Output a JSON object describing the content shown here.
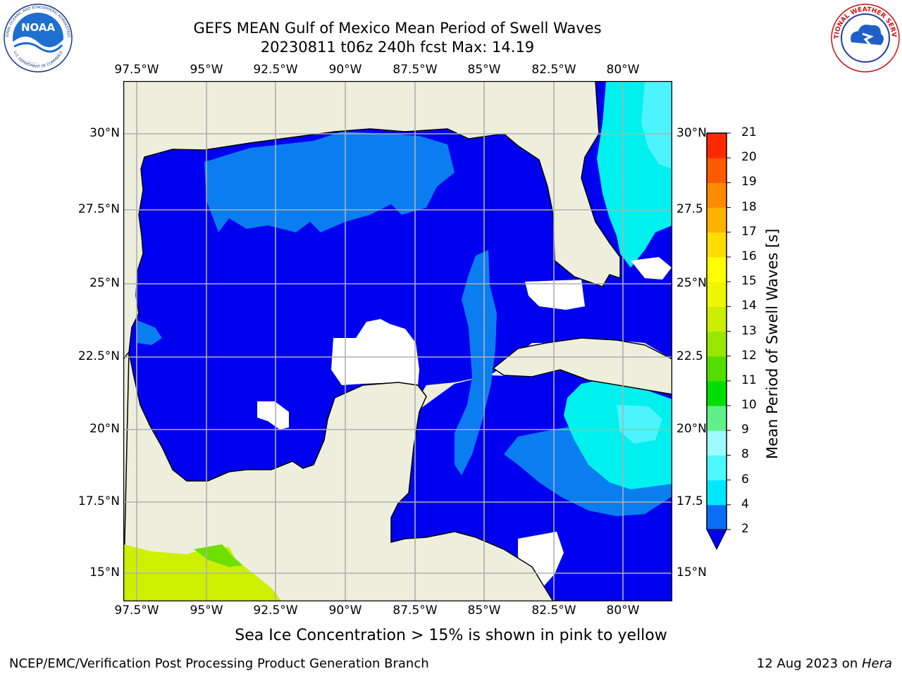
{
  "header": {
    "title_line1": "GEFS MEAN Gulf of Mexico Mean Period of Swell Waves",
    "title_line2": "20230811 t06z 240h fcst   Max: 14.19"
  },
  "map": {
    "lon_labels": [
      "97.5°W",
      "95°W",
      "92.5°W",
      "90°W",
      "87.5°W",
      "85°W",
      "82.5°W",
      "80°W"
    ],
    "lat_labels_left": [
      "30°N",
      "27.5°N",
      "25°N",
      "22.5°N",
      "20°N",
      "17.5°N",
      "15°N"
    ],
    "lat_labels_right": [
      "30°N",
      "27.5",
      "25°N",
      "22.5",
      "20°N",
      "17.5",
      "15°N"
    ],
    "colors": {
      "land": "#eeeedd",
      "water_low": "#0000f0",
      "water_mid": "#0a7ef0",
      "water_cyan": "#00f0f0",
      "water_lightcyan": "#4df3ff",
      "undefined": "#ffffff",
      "grid": "#b0b0b0"
    }
  },
  "colorbar": {
    "title": "Mean Period of Swell Waves [s]",
    "ticks": [
      "2",
      "4",
      "6",
      "8",
      "9",
      "10",
      "11",
      "12",
      "13",
      "14",
      "15",
      "16",
      "17",
      "18",
      "19",
      "20",
      "21"
    ],
    "colors": [
      "#0a6ef5",
      "#00e8ff",
      "#4df8ff",
      "#9dfcff",
      "#60f08a",
      "#00e000",
      "#55dd00",
      "#99e600",
      "#ccee00",
      "#eef700",
      "#ffff00",
      "#ffdd00",
      "#ffb300",
      "#ff8c00",
      "#ff5a00",
      "#ff2a00"
    ],
    "extend_color": "#0000ee"
  },
  "note": "Sea Ice Concentration > 15% is shown in pink to yellow",
  "footer": {
    "left": "NCEP/EMC/Verification Post Processing Product Generation Branch",
    "date": "12 Aug 2023 on ",
    "machine": "Hera"
  },
  "logos": {
    "noaa_text": "NOAA",
    "noaa_ring_top": "NATIONAL OCEANIC AND ATMOSPHERIC ADMINISTRATION",
    "noaa_ring_bottom": "U.S. DEPARTMENT OF COMMERCE",
    "nws_ring": "NATIONAL WEATHER SERVICE"
  }
}
